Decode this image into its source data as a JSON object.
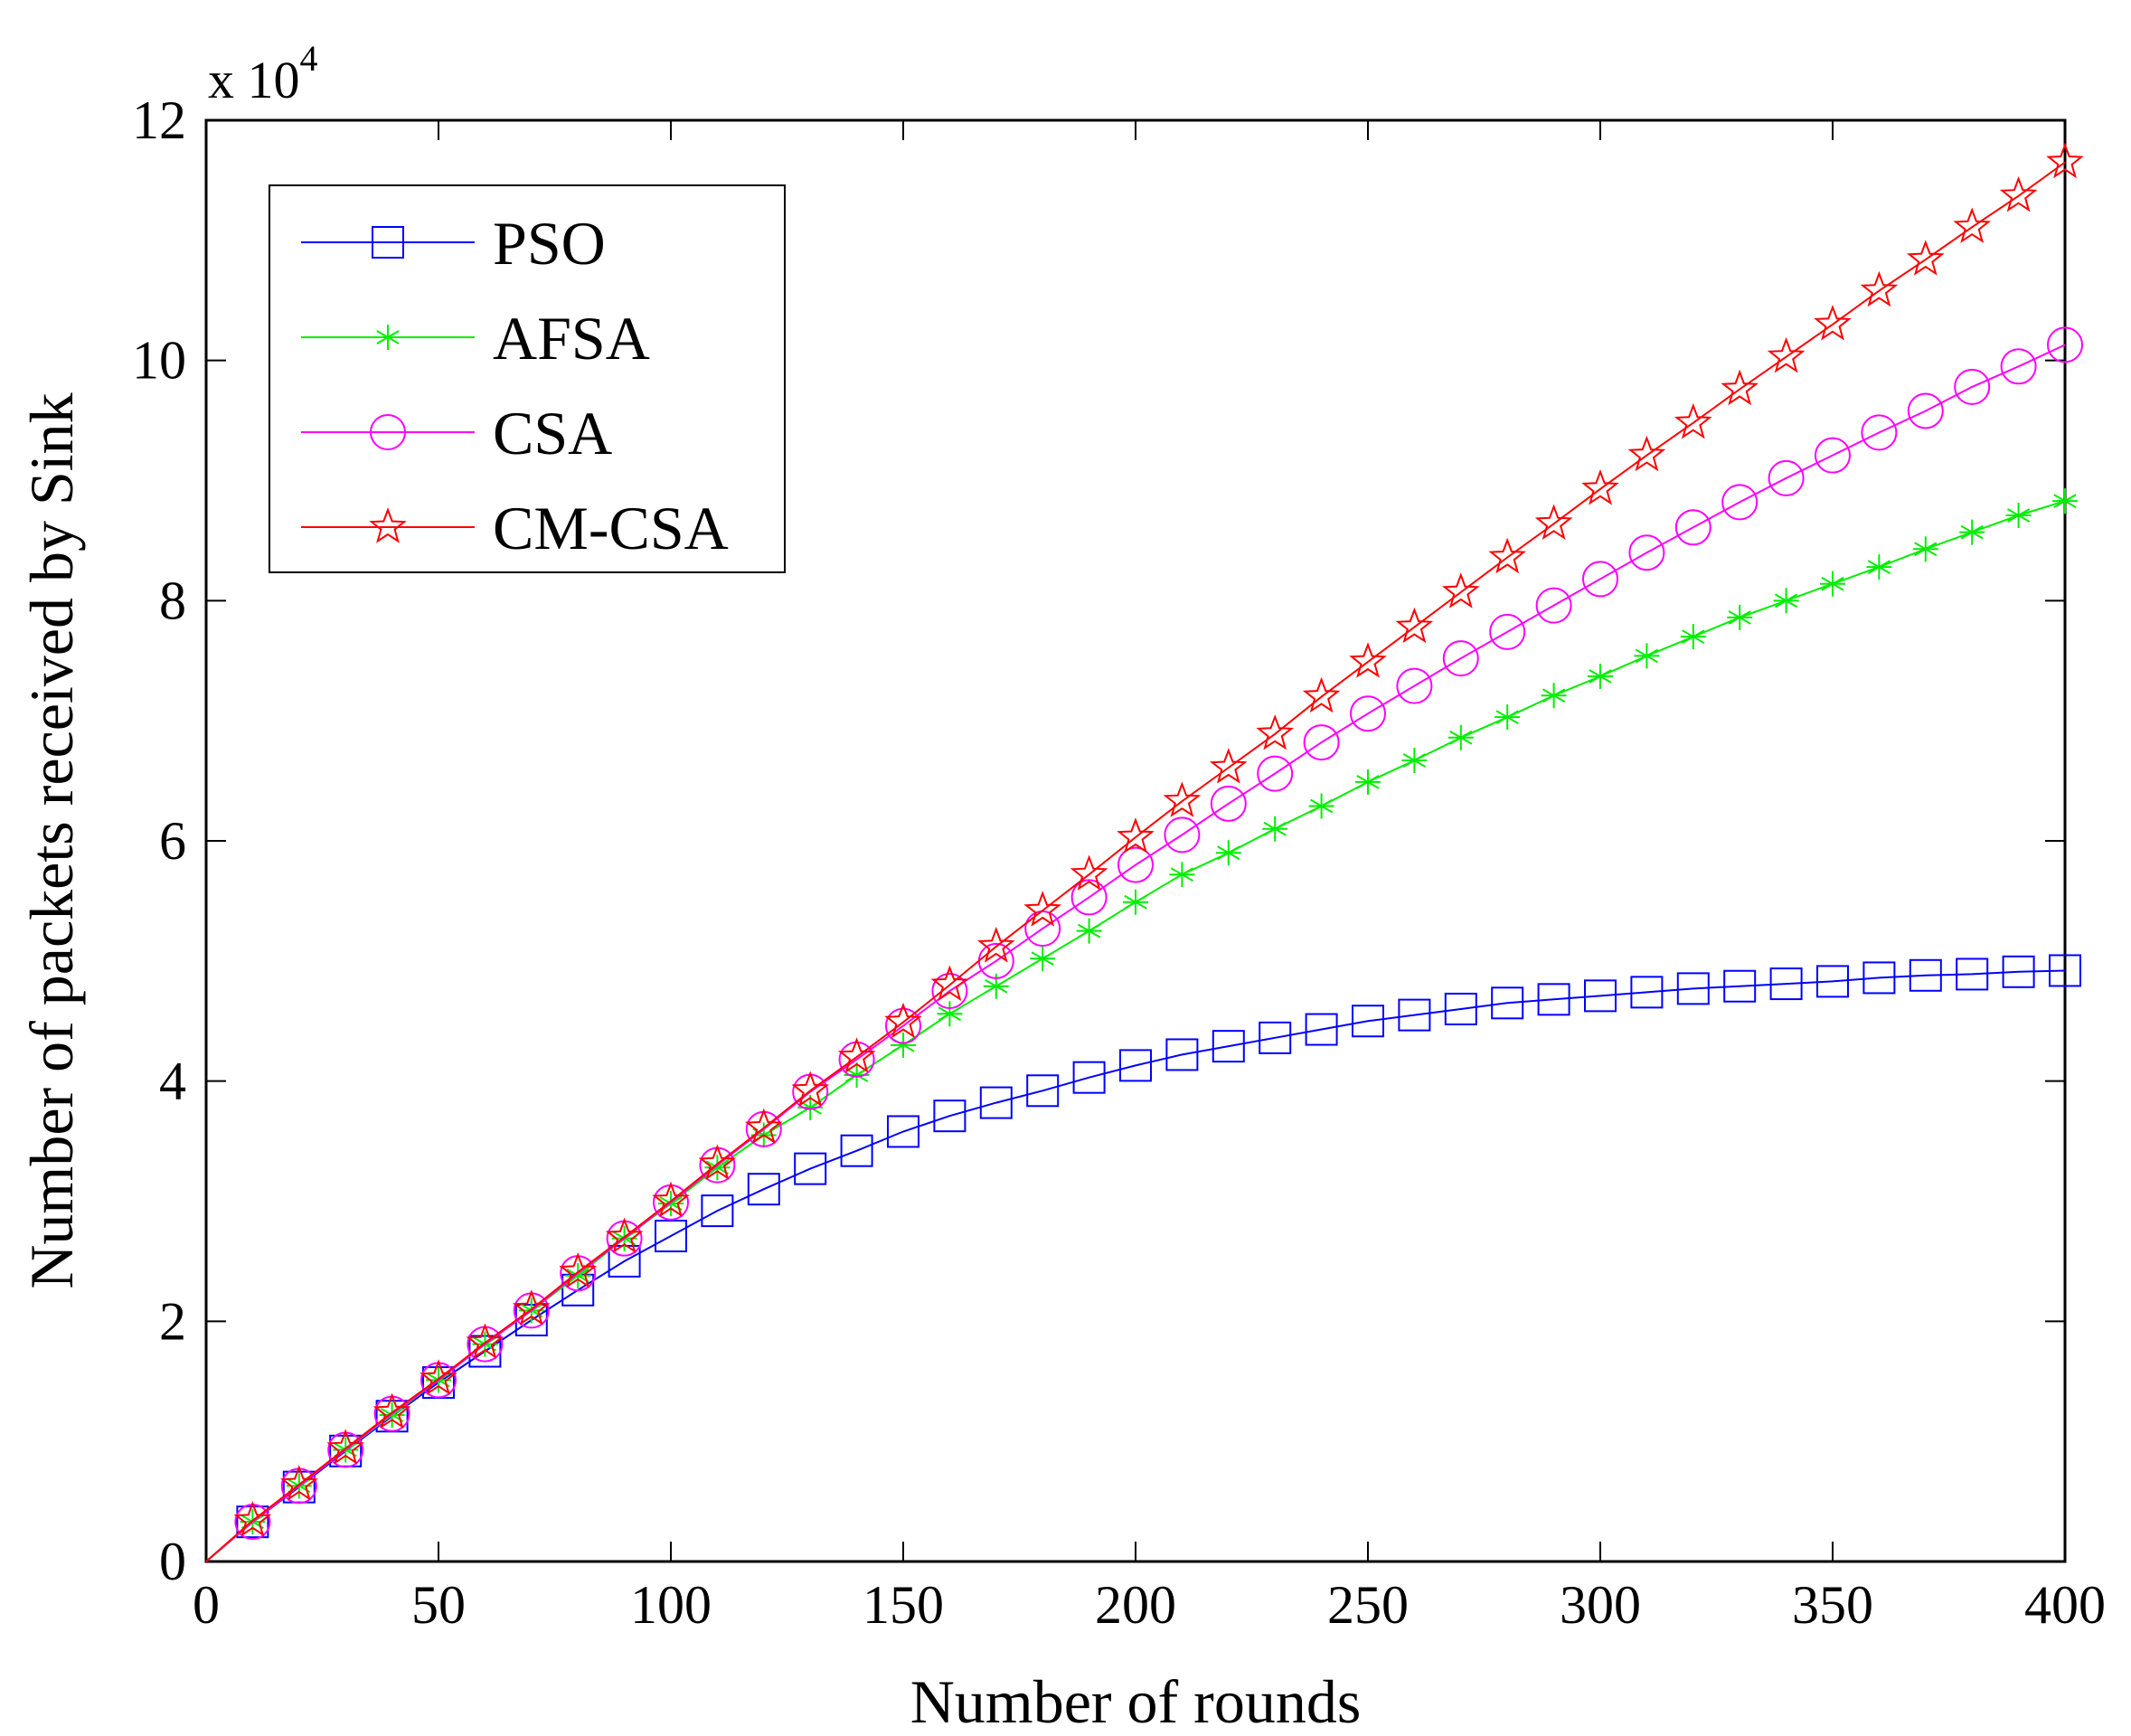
{
  "chart_data": {
    "type": "line",
    "xlabel": "Number of rounds",
    "ylabel": "Number of packets received by Sink",
    "y_multiplier_label": "x 10",
    "y_multiplier_exponent": "4",
    "xlim": [
      0,
      400
    ],
    "ylim": [
      0,
      12
    ],
    "x_ticks": [
      0,
      50,
      100,
      150,
      200,
      250,
      300,
      350,
      400
    ],
    "y_ticks": [
      0,
      2,
      4,
      6,
      8,
      10,
      12
    ],
    "grid": false,
    "legend_position": "top-left",
    "x": [
      10,
      20,
      30,
      40,
      50,
      60,
      70,
      80,
      90,
      100,
      110,
      120,
      130,
      140,
      150,
      160,
      170,
      180,
      190,
      200,
      210,
      220,
      230,
      240,
      250,
      260,
      270,
      280,
      290,
      300,
      310,
      320,
      330,
      340,
      350,
      360,
      370,
      380,
      390,
      400
    ],
    "series": [
      {
        "name": "PSO",
        "color": "#0000ff",
        "marker": "square",
        "values": [
          0.33,
          0.62,
          0.92,
          1.21,
          1.49,
          1.75,
          2.01,
          2.26,
          2.5,
          2.71,
          2.92,
          3.1,
          3.27,
          3.42,
          3.58,
          3.71,
          3.82,
          3.92,
          4.03,
          4.13,
          4.22,
          4.29,
          4.36,
          4.43,
          4.5,
          4.55,
          4.6,
          4.65,
          4.68,
          4.71,
          4.74,
          4.77,
          4.79,
          4.81,
          4.83,
          4.86,
          4.88,
          4.89,
          4.91,
          4.92
        ]
      },
      {
        "name": "AFSA",
        "color": "#00ee00",
        "marker": "asterisk",
        "values": [
          0.33,
          0.63,
          0.93,
          1.22,
          1.51,
          1.81,
          2.09,
          2.38,
          2.69,
          2.98,
          3.28,
          3.55,
          3.78,
          4.05,
          4.3,
          4.56,
          4.79,
          5.02,
          5.25,
          5.49,
          5.72,
          5.9,
          6.1,
          6.29,
          6.49,
          6.67,
          6.86,
          7.03,
          7.21,
          7.37,
          7.54,
          7.7,
          7.86,
          8.0,
          8.14,
          8.28,
          8.43,
          8.57,
          8.71,
          8.83
        ]
      },
      {
        "name": "CSA",
        "color": "#ff00ff",
        "marker": "circle",
        "values": [
          0.33,
          0.63,
          0.93,
          1.23,
          1.51,
          1.81,
          2.09,
          2.4,
          2.69,
          2.99,
          3.3,
          3.6,
          3.91,
          4.18,
          4.46,
          4.75,
          5.0,
          5.27,
          5.53,
          5.8,
          6.05,
          6.31,
          6.56,
          6.82,
          7.06,
          7.29,
          7.52,
          7.74,
          7.96,
          8.18,
          8.4,
          8.61,
          8.82,
          9.02,
          9.21,
          9.4,
          9.58,
          9.78,
          9.95,
          10.13
        ]
      },
      {
        "name": "CM-CSA",
        "color": "#ff0000",
        "marker": "star",
        "values": [
          0.34,
          0.64,
          0.94,
          1.24,
          1.52,
          1.82,
          2.1,
          2.41,
          2.7,
          3.0,
          3.31,
          3.61,
          3.92,
          4.2,
          4.49,
          4.8,
          5.12,
          5.42,
          5.72,
          6.03,
          6.33,
          6.61,
          6.89,
          7.2,
          7.49,
          7.78,
          8.07,
          8.36,
          8.64,
          8.93,
          9.21,
          9.48,
          9.76,
          10.03,
          10.3,
          10.58,
          10.84,
          11.11,
          11.37,
          11.65
        ]
      }
    ]
  }
}
